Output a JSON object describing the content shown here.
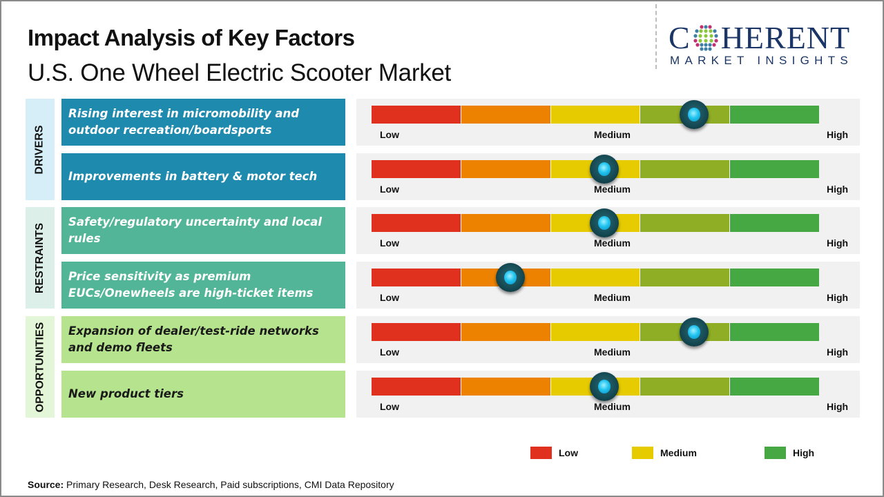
{
  "header": {
    "title": "Impact Analysis of Key Factors",
    "subtitle": "U.S. One Wheel Electric Scooter Market"
  },
  "logo": {
    "main_prefix": "C",
    "main_suffix": "HERENT",
    "sub": "MARKET INSIGHTS",
    "colors": {
      "navy": "#1b3566",
      "pink": "#c2306f",
      "blue": "#3f7fa6",
      "green": "#8cc63f"
    }
  },
  "colors": {
    "drivers_bg": "#1e8aad",
    "restraints_bg": "#52b597",
    "opportunities_bg": "#b6e38e",
    "drivers_cat_bg": "#d6eef8",
    "restraints_cat_bg": "#dcefe9",
    "opportunities_cat_bg": "#e3f6d7",
    "scale_segments": [
      "#e0301e",
      "#ec8200",
      "#e6cb00",
      "#8fae25",
      "#45a843"
    ]
  },
  "chart_data": {
    "type": "table",
    "title": "Impact Analysis of Key Factors",
    "subtitle": "U.S. One Wheel Electric Scooter Market",
    "scale": {
      "min_label": "Low",
      "mid_label": "Medium",
      "max_label": "High",
      "range": [
        0,
        1
      ]
    },
    "categories": [
      {
        "name": "DRIVERS",
        "factors": [
          {
            "label": "Rising interest in micromobility and outdoor recreation/boardsports",
            "impact": 0.72
          },
          {
            "label": "Improvements in battery & motor tech",
            "impact": 0.52
          }
        ]
      },
      {
        "name": "RESTRAINTS",
        "factors": [
          {
            "label": "Safety/regulatory uncertainty and local rules",
            "impact": 0.52
          },
          {
            "label": "Price sensitivity as premium EUCs/Onewheels are high-ticket items",
            "impact": 0.31
          }
        ]
      },
      {
        "name": "OPPORTUNITIES",
        "factors": [
          {
            "label": "Expansion of dealer/test-ride networks and demo fleets",
            "impact": 0.72
          },
          {
            "label": "New product tiers",
            "impact": 0.52
          }
        ]
      }
    ],
    "legend": [
      {
        "label": "Low",
        "color": "#e0301e"
      },
      {
        "label": "Medium",
        "color": "#e6cb00"
      },
      {
        "label": "High",
        "color": "#45a843"
      }
    ]
  },
  "footer": {
    "source_label": "Source:",
    "source_text": " Primary Research, Desk Research, Paid subscriptions, CMI Data Repository"
  }
}
